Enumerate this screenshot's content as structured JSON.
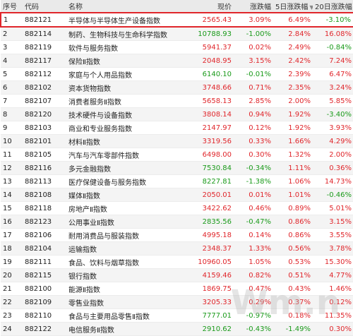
{
  "headers": {
    "idx": "序号",
    "code": "代码",
    "name": "名称",
    "price": "现价",
    "change": "涨跌幅",
    "chg5": "5日涨跌幅",
    "chg20": "20日涨跌幅"
  },
  "rows": [
    {
      "idx": "1",
      "code": "882121",
      "name": "半导体与半导体生产设备指数",
      "price": "2565.43",
      "change": "3.09%",
      "chg5": "6.49%",
      "chg20": "-3.10%",
      "d_price": "up",
      "d_change": "up",
      "d_chg5": "up",
      "d_chg20": "down"
    },
    {
      "idx": "2",
      "code": "882114",
      "name": "制药、生物科技与生命科学指数",
      "price": "10788.93",
      "change": "-1.00%",
      "chg5": "2.84%",
      "chg20": "16.08%",
      "d_price": "down",
      "d_change": "down",
      "d_chg5": "up",
      "d_chg20": "up"
    },
    {
      "idx": "3",
      "code": "882119",
      "name": "软件与服务指数",
      "price": "5941.37",
      "change": "0.02%",
      "chg5": "2.49%",
      "chg20": "-0.84%",
      "d_price": "up",
      "d_change": "up",
      "d_chg5": "up",
      "d_chg20": "down"
    },
    {
      "idx": "4",
      "code": "882117",
      "name": "保险Ⅱ指数",
      "price": "2048.95",
      "change": "3.15%",
      "chg5": "2.42%",
      "chg20": "7.24%",
      "d_price": "up",
      "d_change": "up",
      "d_chg5": "up",
      "d_chg20": "up"
    },
    {
      "idx": "5",
      "code": "882112",
      "name": "家庭与个人用品指数",
      "price": "6140.10",
      "change": "-0.01%",
      "chg5": "2.39%",
      "chg20": "6.47%",
      "d_price": "down",
      "d_change": "down",
      "d_chg5": "up",
      "d_chg20": "up"
    },
    {
      "idx": "6",
      "code": "882102",
      "name": "资本货物指数",
      "price": "3748.66",
      "change": "0.71%",
      "chg5": "2.35%",
      "chg20": "3.24%",
      "d_price": "up",
      "d_change": "up",
      "d_chg5": "up",
      "d_chg20": "up"
    },
    {
      "idx": "7",
      "code": "882107",
      "name": "消费者服务Ⅱ指数",
      "price": "5658.13",
      "change": "2.85%",
      "chg5": "2.00%",
      "chg20": "5.85%",
      "d_price": "up",
      "d_change": "up",
      "d_chg5": "up",
      "d_chg20": "up"
    },
    {
      "idx": "8",
      "code": "882120",
      "name": "技术硬件与设备指数",
      "price": "3808.14",
      "change": "0.94%",
      "chg5": "1.92%",
      "chg20": "-3.40%",
      "d_price": "up",
      "d_change": "up",
      "d_chg5": "up",
      "d_chg20": "down"
    },
    {
      "idx": "9",
      "code": "882103",
      "name": "商业和专业服务指数",
      "price": "2147.97",
      "change": "0.12%",
      "chg5": "1.92%",
      "chg20": "3.93%",
      "d_price": "up",
      "d_change": "up",
      "d_chg5": "up",
      "d_chg20": "up"
    },
    {
      "idx": "10",
      "code": "882101",
      "name": "材料Ⅱ指数",
      "price": "3319.56",
      "change": "0.33%",
      "chg5": "1.66%",
      "chg20": "4.29%",
      "d_price": "up",
      "d_change": "up",
      "d_chg5": "up",
      "d_chg20": "up"
    },
    {
      "idx": "11",
      "code": "882105",
      "name": "汽车与汽车零部件指数",
      "price": "6498.00",
      "change": "0.30%",
      "chg5": "1.32%",
      "chg20": "2.00%",
      "d_price": "up",
      "d_change": "up",
      "d_chg5": "up",
      "d_chg20": "up"
    },
    {
      "idx": "12",
      "code": "882116",
      "name": "多元金融指数",
      "price": "7530.84",
      "change": "-0.34%",
      "chg5": "1.11%",
      "chg20": "0.36%",
      "d_price": "down",
      "d_change": "down",
      "d_chg5": "up",
      "d_chg20": "up"
    },
    {
      "idx": "13",
      "code": "882113",
      "name": "医疗保健设备与服务指数",
      "price": "8227.81",
      "change": "-1.38%",
      "chg5": "1.06%",
      "chg20": "14.73%",
      "d_price": "down",
      "d_change": "down",
      "d_chg5": "up",
      "d_chg20": "up"
    },
    {
      "idx": "14",
      "code": "882108",
      "name": "媒体Ⅱ指数",
      "price": "2050.01",
      "change": "0.01%",
      "chg5": "1.01%",
      "chg20": "-0.46%",
      "d_price": "up",
      "d_change": "up",
      "d_chg5": "up",
      "d_chg20": "down"
    },
    {
      "idx": "15",
      "code": "882118",
      "name": "房地产Ⅱ指数",
      "price": "3422.62",
      "change": "0.46%",
      "chg5": "0.89%",
      "chg20": "5.01%",
      "d_price": "up",
      "d_change": "up",
      "d_chg5": "up",
      "d_chg20": "up"
    },
    {
      "idx": "16",
      "code": "882123",
      "name": "公用事业Ⅱ指数",
      "price": "2835.56",
      "change": "-0.47%",
      "chg5": "0.86%",
      "chg20": "3.15%",
      "d_price": "down",
      "d_change": "down",
      "d_chg5": "up",
      "d_chg20": "up"
    },
    {
      "idx": "17",
      "code": "882106",
      "name": "耐用消费品与服装指数",
      "price": "4995.18",
      "change": "0.14%",
      "chg5": "0.86%",
      "chg20": "3.55%",
      "d_price": "up",
      "d_change": "up",
      "d_chg5": "up",
      "d_chg20": "up"
    },
    {
      "idx": "18",
      "code": "882104",
      "name": "运输指数",
      "price": "2348.37",
      "change": "1.33%",
      "chg5": "0.56%",
      "chg20": "3.78%",
      "d_price": "up",
      "d_change": "up",
      "d_chg5": "up",
      "d_chg20": "up"
    },
    {
      "idx": "19",
      "code": "882111",
      "name": "食品、饮料与烟草指数",
      "price": "10960.05",
      "change": "1.05%",
      "chg5": "0.53%",
      "chg20": "15.30%",
      "d_price": "up",
      "d_change": "up",
      "d_chg5": "up",
      "d_chg20": "up"
    },
    {
      "idx": "20",
      "code": "882115",
      "name": "银行指数",
      "price": "4159.46",
      "change": "0.82%",
      "chg5": "0.51%",
      "chg20": "4.77%",
      "d_price": "up",
      "d_change": "up",
      "d_chg5": "up",
      "d_chg20": "up"
    },
    {
      "idx": "21",
      "code": "882100",
      "name": "能源Ⅱ指数",
      "price": "1869.75",
      "change": "0.47%",
      "chg5": "0.43%",
      "chg20": "1.46%",
      "d_price": "up",
      "d_change": "up",
      "d_chg5": "up",
      "d_chg20": "up"
    },
    {
      "idx": "22",
      "code": "882109",
      "name": "零售业指数",
      "price": "3205.33",
      "change": "0.29%",
      "chg5": "0.37%",
      "chg20": "0.12%",
      "d_price": "up",
      "d_change": "up",
      "d_chg5": "up",
      "d_chg20": "up"
    },
    {
      "idx": "23",
      "code": "882110",
      "name": "食品与主要用品零售Ⅱ指数",
      "price": "7777.01",
      "change": "-0.97%",
      "chg5": "0.18%",
      "chg20": "11.35%",
      "d_price": "down",
      "d_change": "down",
      "d_chg5": "up",
      "d_chg20": "up"
    },
    {
      "idx": "24",
      "code": "882122",
      "name": "电信服务Ⅱ指数",
      "price": "2910.62",
      "change": "-0.43%",
      "chg5": "-1.49%",
      "chg20": "0.30%",
      "d_price": "down",
      "d_change": "down",
      "d_chg5": "down",
      "d_chg20": "up"
    }
  ],
  "sort_icon": "sort-desc-icon",
  "watermark": "Wm.n",
  "colors": {
    "up": "#e0262b",
    "down": "#1a9a1a",
    "highlight_border": "#e0262b"
  }
}
